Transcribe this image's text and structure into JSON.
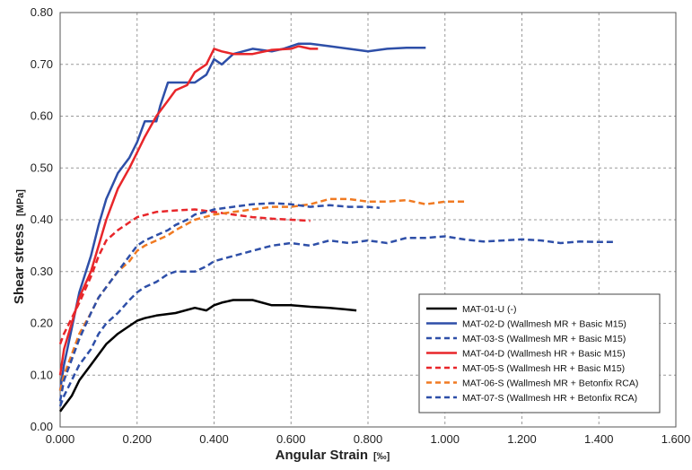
{
  "chart_data": {
    "type": "line",
    "xlabel": "Angular Strain",
    "xunit": "[‰]",
    "ylabel": "Shear stress",
    "yunit": "[MPa]",
    "xlim": [
      0,
      1.6
    ],
    "ylim": [
      0,
      0.8
    ],
    "xticks": [
      "0.000",
      "0.200",
      "0.400",
      "0.600",
      "0.800",
      "1.000",
      "1.200",
      "1.400",
      "1.600"
    ],
    "yticks": [
      "0.00",
      "0.10",
      "0.20",
      "0.30",
      "0.40",
      "0.50",
      "0.60",
      "0.70",
      "0.80"
    ],
    "grid": true,
    "grid_style": "dashed",
    "legend_position": "bottom-right",
    "series": [
      {
        "name": "MAT-01-U (-)",
        "color": "#000000",
        "dash": "solid",
        "x": [
          0,
          0.01,
          0.03,
          0.05,
          0.08,
          0.1,
          0.12,
          0.15,
          0.18,
          0.2,
          0.22,
          0.25,
          0.3,
          0.35,
          0.38,
          0.4,
          0.42,
          0.45,
          0.5,
          0.55,
          0.6,
          0.65,
          0.7,
          0.77
        ],
        "y": [
          0.03,
          0.04,
          0.06,
          0.09,
          0.12,
          0.14,
          0.16,
          0.18,
          0.195,
          0.205,
          0.21,
          0.215,
          0.22,
          0.23,
          0.225,
          0.235,
          0.24,
          0.245,
          0.245,
          0.235,
          0.235,
          0.232,
          0.23,
          0.225
        ]
      },
      {
        "name": "MAT-02-D (Wallmesh MR + Basic M15)",
        "color": "#2E4FA8",
        "dash": "solid",
        "x": [
          0,
          0.01,
          0.03,
          0.05,
          0.08,
          0.1,
          0.12,
          0.15,
          0.18,
          0.2,
          0.22,
          0.25,
          0.26,
          0.28,
          0.32,
          0.35,
          0.38,
          0.4,
          0.42,
          0.45,
          0.5,
          0.55,
          0.58,
          0.62,
          0.65,
          0.7,
          0.75,
          0.8,
          0.85,
          0.9,
          0.95
        ],
        "y": [
          0.07,
          0.12,
          0.19,
          0.26,
          0.33,
          0.39,
          0.44,
          0.49,
          0.52,
          0.55,
          0.59,
          0.59,
          0.62,
          0.665,
          0.665,
          0.665,
          0.68,
          0.71,
          0.7,
          0.72,
          0.73,
          0.725,
          0.73,
          0.74,
          0.74,
          0.735,
          0.73,
          0.725,
          0.73,
          0.732,
          0.732
        ]
      },
      {
        "name": "MAT-03-S (Wallmesh MR + Basic M15)",
        "color": "#2E4FA8",
        "dash": "dashed",
        "x": [
          0,
          0.01,
          0.03,
          0.05,
          0.08,
          0.1,
          0.12,
          0.15,
          0.18,
          0.2,
          0.22,
          0.25,
          0.28,
          0.3,
          0.32,
          0.35,
          0.38,
          0.4,
          0.45,
          0.5,
          0.55,
          0.6,
          0.65,
          0.7,
          0.75,
          0.8,
          0.85,
          0.9,
          0.95,
          1.0,
          1.05,
          1.1,
          1.15,
          1.2,
          1.25,
          1.3,
          1.35,
          1.4,
          1.44
        ],
        "y": [
          0.04,
          0.06,
          0.09,
          0.12,
          0.15,
          0.18,
          0.2,
          0.22,
          0.245,
          0.26,
          0.27,
          0.28,
          0.295,
          0.3,
          0.3,
          0.3,
          0.31,
          0.32,
          0.33,
          0.34,
          0.35,
          0.355,
          0.35,
          0.36,
          0.355,
          0.36,
          0.355,
          0.365,
          0.365,
          0.368,
          0.362,
          0.358,
          0.36,
          0.362,
          0.36,
          0.355,
          0.358,
          0.357,
          0.357
        ]
      },
      {
        "name": "MAT-04-D (Wallmesh HR + Basic M15)",
        "color": "#E8262A",
        "dash": "solid",
        "x": [
          0,
          0.01,
          0.03,
          0.05,
          0.08,
          0.1,
          0.12,
          0.15,
          0.18,
          0.2,
          0.22,
          0.25,
          0.28,
          0.3,
          0.33,
          0.35,
          0.38,
          0.4,
          0.42,
          0.45,
          0.5,
          0.55,
          0.6,
          0.62,
          0.65,
          0.67
        ],
        "y": [
          0.1,
          0.15,
          0.2,
          0.25,
          0.3,
          0.35,
          0.4,
          0.46,
          0.5,
          0.53,
          0.56,
          0.6,
          0.63,
          0.65,
          0.66,
          0.685,
          0.7,
          0.73,
          0.725,
          0.72,
          0.72,
          0.728,
          0.73,
          0.735,
          0.73,
          0.73
        ]
      },
      {
        "name": "MAT-05-S (Wallmesh HR + Basic M15)",
        "color": "#E8262A",
        "dash": "dashed",
        "x": [
          0,
          0.01,
          0.03,
          0.05,
          0.08,
          0.1,
          0.12,
          0.15,
          0.18,
          0.2,
          0.25,
          0.3,
          0.35,
          0.4,
          0.45,
          0.5,
          0.55,
          0.6,
          0.65
        ],
        "y": [
          0.16,
          0.18,
          0.21,
          0.24,
          0.29,
          0.33,
          0.36,
          0.38,
          0.395,
          0.405,
          0.415,
          0.418,
          0.42,
          0.415,
          0.41,
          0.405,
          0.402,
          0.4,
          0.398
        ]
      },
      {
        "name": "MAT-06-S (Wallmesh MR + Betonfix RCA)",
        "color": "#F07A22",
        "dash": "dashed",
        "x": [
          0,
          0.01,
          0.03,
          0.05,
          0.08,
          0.1,
          0.12,
          0.15,
          0.18,
          0.2,
          0.22,
          0.25,
          0.28,
          0.3,
          0.35,
          0.4,
          0.45,
          0.5,
          0.55,
          0.6,
          0.65,
          0.7,
          0.75,
          0.8,
          0.85,
          0.9,
          0.95,
          1.0,
          1.05
        ],
        "y": [
          0.07,
          0.1,
          0.14,
          0.18,
          0.22,
          0.25,
          0.27,
          0.3,
          0.32,
          0.34,
          0.35,
          0.36,
          0.37,
          0.38,
          0.4,
          0.41,
          0.415,
          0.42,
          0.425,
          0.425,
          0.43,
          0.44,
          0.44,
          0.435,
          0.435,
          0.438,
          0.43,
          0.435,
          0.435
        ]
      },
      {
        "name": "MAT-07-S (Wallmesh HR + Betonfix RCA)",
        "color": "#2E4FA8",
        "dash": "dashed",
        "x": [
          0,
          0.01,
          0.03,
          0.05,
          0.08,
          0.1,
          0.12,
          0.15,
          0.18,
          0.2,
          0.22,
          0.25,
          0.28,
          0.3,
          0.33,
          0.35,
          0.38,
          0.4,
          0.45,
          0.5,
          0.55,
          0.6,
          0.65,
          0.7,
          0.75,
          0.8,
          0.83
        ],
        "y": [
          0.05,
          0.09,
          0.13,
          0.17,
          0.22,
          0.25,
          0.27,
          0.3,
          0.33,
          0.35,
          0.36,
          0.37,
          0.38,
          0.39,
          0.4,
          0.41,
          0.415,
          0.42,
          0.425,
          0.43,
          0.432,
          0.43,
          0.425,
          0.428,
          0.425,
          0.425,
          0.423
        ]
      }
    ]
  }
}
